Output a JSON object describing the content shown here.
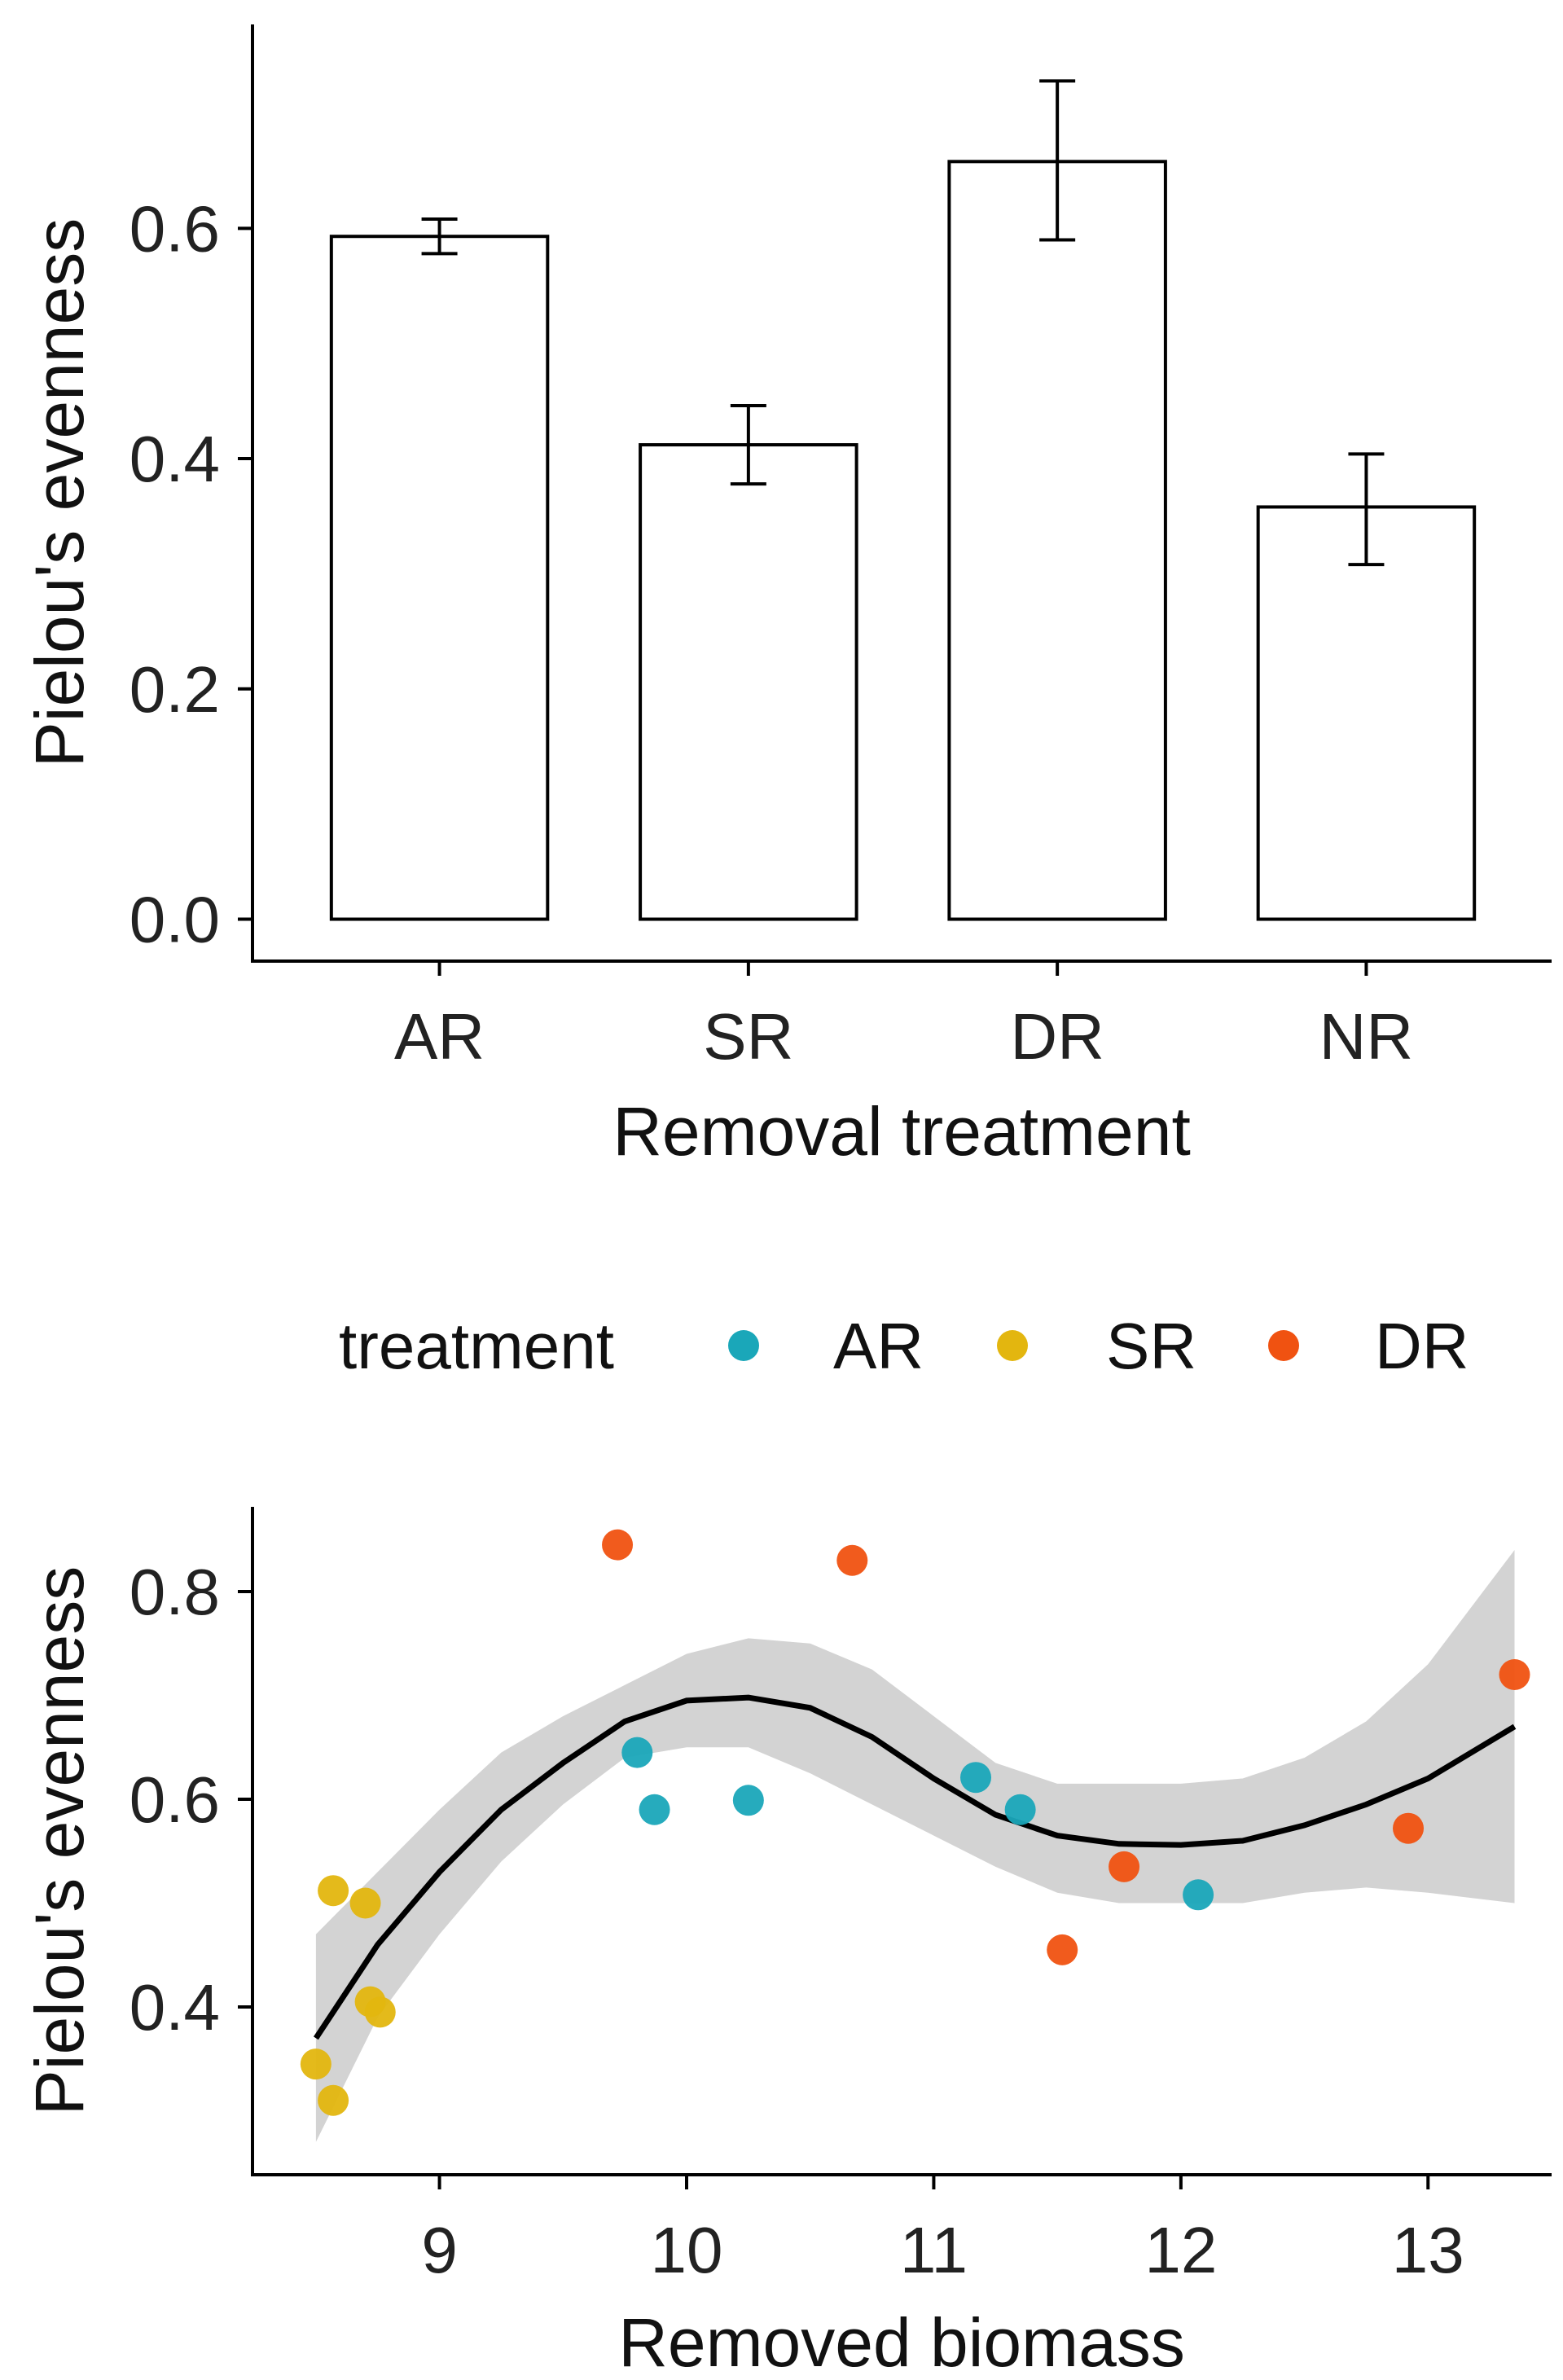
{
  "chart_data": [
    {
      "type": "bar",
      "xlabel": "Removal treatment",
      "ylabel": "Pielou's evenness",
      "categories": [
        "AR",
        "SR",
        "DR",
        "NR"
      ],
      "values": [
        0.593,
        0.412,
        0.658,
        0.358
      ],
      "error_low": [
        0.578,
        0.378,
        0.59,
        0.308
      ],
      "error_high": [
        0.608,
        0.446,
        0.728,
        0.404
      ],
      "ylim": [
        -0.035,
        0.77
      ],
      "yticks": [
        0.0,
        0.2,
        0.4,
        0.6
      ],
      "ytick_labels": [
        "0.0",
        "0.2",
        "0.4",
        "0.6"
      ],
      "grid": false,
      "colors": {
        "bar_fill": "#ffffff",
        "bar_stroke": "#000000"
      }
    },
    {
      "type": "scatter",
      "xlabel": "Removed biomass",
      "ylabel": "Pielou's evenness",
      "legend": {
        "title": "treatment",
        "position": "top",
        "entries": [
          "AR",
          "SR",
          "DR"
        ]
      },
      "xlim": [
        8.25,
        13.5
      ],
      "ylim": [
        0.24,
        0.88
      ],
      "xticks": [
        9,
        10,
        11,
        12,
        13
      ],
      "xtick_labels": [
        "9",
        "10",
        "11",
        "12",
        "13"
      ],
      "yticks": [
        0.4,
        0.6,
        0.8
      ],
      "ytick_labels": [
        "0.4",
        "0.6",
        "0.8"
      ],
      "grid": false,
      "series": [
        {
          "name": "AR",
          "color": "#1AA7B9",
          "points": [
            [
              9.8,
              0.645
            ],
            [
              9.87,
              0.59
            ],
            [
              10.25,
              0.599
            ],
            [
              11.17,
              0.621
            ],
            [
              11.35,
              0.59
            ],
            [
              12.07,
              0.508
            ]
          ]
        },
        {
          "name": "SR",
          "color": "#E3B60F",
          "points": [
            [
              8.5,
              0.345
            ],
            [
              8.57,
              0.31
            ],
            [
              8.57,
              0.512
            ],
            [
              8.7,
              0.5
            ],
            [
              8.72,
              0.405
            ],
            [
              8.76,
              0.395
            ]
          ]
        },
        {
          "name": "DR",
          "color": "#F05211",
          "points": [
            [
              9.72,
              0.845
            ],
            [
              10.67,
              0.83
            ],
            [
              11.52,
              0.455
            ],
            [
              11.77,
              0.535
            ],
            [
              12.92,
              0.572
            ],
            [
              13.35,
              0.72
            ]
          ]
        }
      ],
      "smooth_fit": {
        "x": [
          8.5,
          8.75,
          9.0,
          9.25,
          9.5,
          9.75,
          10.0,
          10.25,
          10.5,
          10.75,
          11.0,
          11.25,
          11.5,
          11.75,
          12.0,
          12.25,
          12.5,
          12.75,
          13.0,
          13.35
        ],
        "y": [
          0.37,
          0.46,
          0.53,
          0.59,
          0.635,
          0.675,
          0.695,
          0.698,
          0.688,
          0.66,
          0.62,
          0.585,
          0.565,
          0.557,
          0.556,
          0.56,
          0.575,
          0.595,
          0.62,
          0.67
        ],
        "lower": [
          0.27,
          0.39,
          0.47,
          0.54,
          0.595,
          0.64,
          0.65,
          0.65,
          0.625,
          0.595,
          0.565,
          0.535,
          0.51,
          0.5,
          0.5,
          0.5,
          0.51,
          0.515,
          0.51,
          0.5
        ],
        "upper": [
          0.47,
          0.53,
          0.59,
          0.645,
          0.68,
          0.71,
          0.74,
          0.755,
          0.75,
          0.725,
          0.68,
          0.635,
          0.615,
          0.615,
          0.615,
          0.62,
          0.64,
          0.675,
          0.73,
          0.84
        ]
      }
    }
  ]
}
